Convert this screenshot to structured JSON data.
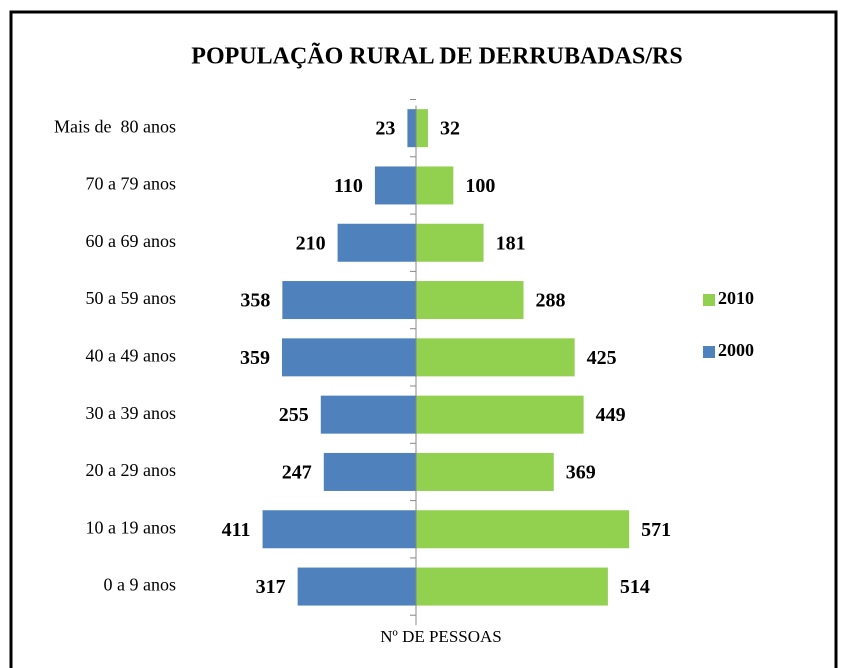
{
  "chart_data": {
    "type": "butterfly",
    "title": "POPULAÇÃO RURAL DE DERRUBADAS/RS",
    "xlabel": "Nº DE PESSOAS",
    "categories": [
      "Mais de  80 anos",
      "70 a 79 anos",
      "60 a 69 anos",
      "50 a 59 anos",
      "40 a 49 anos",
      "30 a 39 anos",
      "20 a 29 anos",
      "10 a 19 anos",
      "0 a 9 anos"
    ],
    "series": [
      {
        "name": "2010",
        "color": "#92d050",
        "side": "right",
        "values": [
          32,
          100,
          181,
          288,
          425,
          449,
          369,
          571,
          514
        ]
      },
      {
        "name": "2000",
        "color": "#4f81bd",
        "side": "left",
        "values": [
          23,
          110,
          210,
          358,
          359,
          255,
          247,
          411,
          317
        ]
      }
    ],
    "xlim": [
      -600,
      600
    ]
  }
}
